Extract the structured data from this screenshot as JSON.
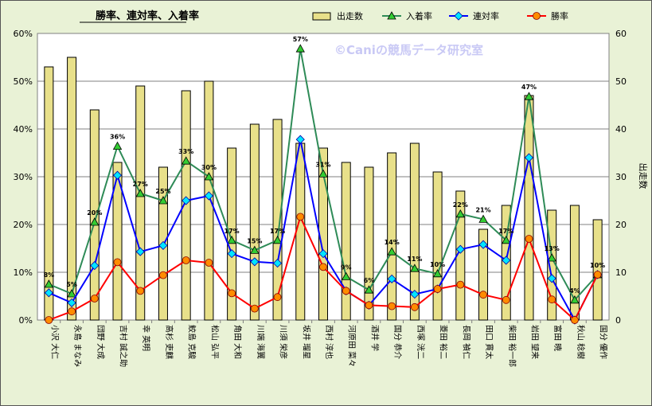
{
  "chart_data": {
    "type": "bar+line",
    "title": "勝率、連対率、入着率",
    "watermark": "©Caniの競馬データ研究室",
    "y2label": "出走数",
    "yticks": [
      "0%",
      "10%",
      "20%",
      "30%",
      "40%",
      "50%",
      "60%"
    ],
    "y2ticks": [
      "0",
      "10",
      "20",
      "30",
      "40",
      "50",
      "60"
    ],
    "ylim": [
      0,
      60
    ],
    "y2lim": [
      0,
      60
    ],
    "categories": [
      "小沢 大仁",
      "永島 まなみ",
      "団野 大成",
      "吉村 誠之助",
      "幸 英明",
      "高杉 吏麒",
      "鮫島 克駿",
      "松山 弘平",
      "角田 大和",
      "川端 海翼",
      "川須 栄彦",
      "坂井 瑠星",
      "西村 淳也",
      "河原田 菜々",
      "酒井 学",
      "国分 恭介",
      "西塚 洸二",
      "菱田 裕二",
      "長岡 禎仁",
      "田口 貫太",
      "柴田 裕一郎",
      "岩田 望来",
      "富田 暁",
      "秋山 稔樹",
      "国分 優作"
    ],
    "series": [
      {
        "name": "出走数",
        "type": "bar",
        "color": "#e8e08a",
        "values": [
          53,
          55,
          44,
          33,
          49,
          32,
          48,
          50,
          36,
          41,
          42,
          37,
          36,
          33,
          32,
          35,
          37,
          31,
          27,
          19,
          24,
          47,
          23,
          24,
          21
        ]
      },
      {
        "name": "入着率",
        "type": "line",
        "color": "#2e8b57",
        "marker": "#33cc33",
        "values": [
          7.5,
          5.5,
          20.5,
          36.4,
          26.5,
          25,
          33.3,
          30,
          16.7,
          14.6,
          16.7,
          56.8,
          30.6,
          9.1,
          6.3,
          14.3,
          10.8,
          9.7,
          22.2,
          21.1,
          16.7,
          46.8,
          13,
          4.2,
          9.5
        ]
      },
      {
        "name": "連対率",
        "type": "line",
        "color": "#0000ff",
        "marker": "#00e5ff",
        "values": [
          5.7,
          3.6,
          11.4,
          30.3,
          14.3,
          15.6,
          25,
          26,
          13.9,
          12.2,
          11.9,
          37.8,
          13.9,
          6.1,
          3.1,
          8.6,
          5.4,
          6.5,
          14.8,
          15.8,
          12.5,
          34,
          8.7,
          0,
          9.5
        ]
      },
      {
        "name": "勝率",
        "type": "line",
        "color": "#ff0000",
        "marker": "#ff8c00",
        "values": [
          0,
          1.8,
          4.5,
          12.1,
          6.1,
          9.4,
          12.5,
          12,
          5.6,
          2.4,
          4.8,
          21.6,
          11.1,
          6.1,
          3.1,
          2.9,
          2.7,
          6.5,
          7.4,
          5.3,
          4.2,
          17,
          4.3,
          0,
          9.5
        ]
      }
    ],
    "labels": [
      "8%",
      "5%",
      "20%",
      "36%",
      "27%",
      "25%",
      "33%",
      "30%",
      "17%",
      "15%",
      "17%",
      "57%",
      "31%",
      "9%",
      "6%",
      "14%",
      "11%",
      "10%",
      "22%",
      "21%",
      "17%",
      "47%",
      "13%",
      "4%",
      "10%"
    ]
  }
}
